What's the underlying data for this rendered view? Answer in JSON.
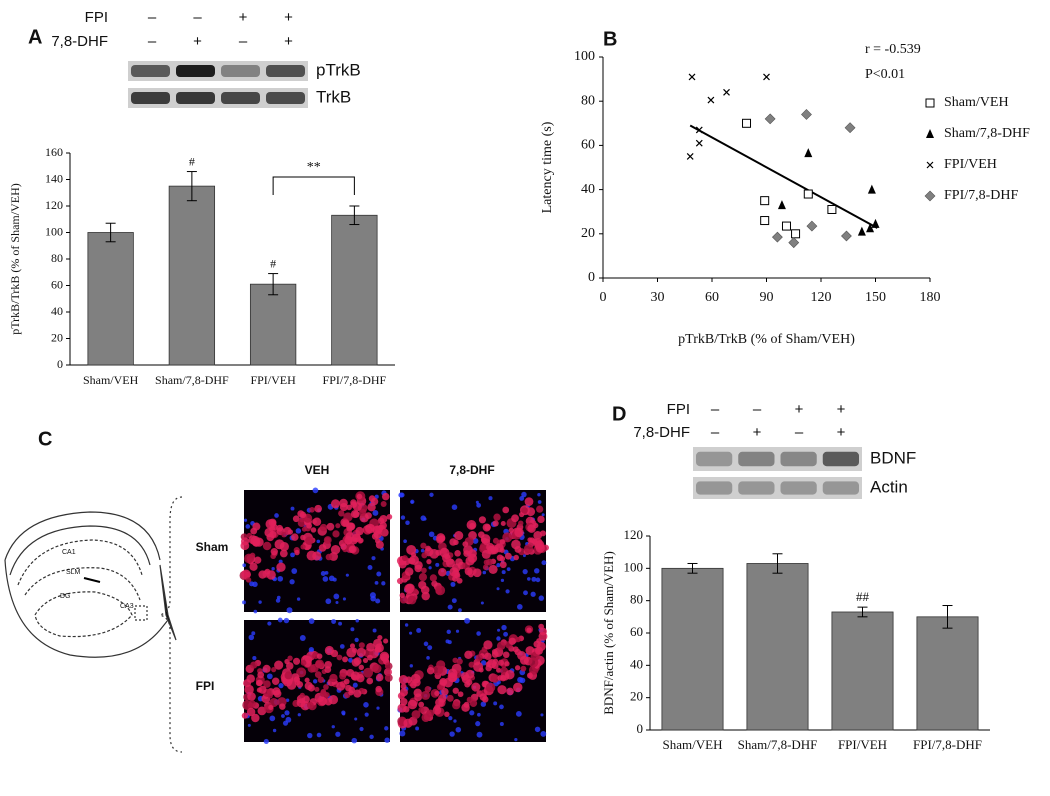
{
  "chart_data": [
    {
      "type": "bar",
      "panel_label": "A",
      "y_label": "pTrkB/TrkB (% of Sham/VEH)",
      "categories": [
        "Sham/VEH",
        "Sham/7,8-DHF",
        "FPI/VEH",
        "FPI/7,8-DHF"
      ],
      "values": [
        100,
        135,
        61,
        113
      ],
      "errors": [
        7,
        11,
        8,
        7
      ],
      "color": "#808080",
      "ylim": [
        0,
        160
      ],
      "yticks": [
        0,
        20,
        40,
        60,
        80,
        100,
        120,
        140,
        160
      ],
      "annotations": [
        "#",
        "#",
        "**"
      ],
      "blot": {
        "rows": [
          {
            "label": "FPI",
            "signs": [
              "–",
              "–",
              "+",
              "+"
            ]
          },
          {
            "label": "7,8-DHF",
            "signs": [
              "–",
              "+",
              "–",
              "+"
            ]
          }
        ],
        "bands": [
          "pTrkB",
          "TrkB"
        ]
      }
    },
    {
      "type": "scatter",
      "panel_label": "B",
      "x_label": "pTrkB/TrkB (% of Sham/VEH)",
      "y_label": "Latency time (s)",
      "xlim": [
        0,
        180
      ],
      "xticks": [
        0,
        30,
        60,
        90,
        120,
        150,
        180
      ],
      "ylim": [
        0,
        100
      ],
      "yticks": [
        0,
        20,
        40,
        60,
        80,
        100
      ],
      "annotations": [
        "r = -0.539",
        "P<0.01"
      ],
      "legend": "right",
      "series": [
        {
          "name": "Sham/VEH",
          "marker": "open-square",
          "color": "#000000",
          "x": [
            79,
            89,
            89,
            101,
            106,
            113,
            126
          ],
          "values": [
            70,
            35,
            26,
            23.5,
            20,
            38,
            31
          ]
        },
        {
          "name": "Sham/7,8-DHF",
          "marker": "triangle",
          "color": "#000000",
          "x": [
            98.5,
            113,
            148,
            142.5,
            147,
            150
          ],
          "values": [
            33,
            56.5,
            40,
            21,
            22.5,
            24.5
          ]
        },
        {
          "name": "FPI/VEH",
          "marker": "x",
          "color": "#000000",
          "x": [
            49,
            59.4,
            68,
            90,
            53,
            53,
            48
          ],
          "values": [
            91,
            80.5,
            84,
            91,
            67,
            61,
            55
          ]
        },
        {
          "name": "FPI/7,8-DHF",
          "marker": "diamond",
          "color": "#808080",
          "x": [
            92,
            112,
            136,
            96,
            105,
            115,
            134
          ],
          "values": [
            72,
            74,
            68,
            18.5,
            16,
            23.5,
            19
          ]
        }
      ],
      "trendline": {
        "x": [
          48,
          151
        ],
        "y": [
          69,
          22.6
        ],
        "color": "#000000"
      }
    },
    {
      "type": "bar",
      "panel_label": "D",
      "y_label": "BDNF/actin (% of Sham/VEH)",
      "categories": [
        "Sham/VEH",
        "Sham/7,8-DHF",
        "FPI/VEH",
        "FPI/7,8-DHF"
      ],
      "values": [
        100,
        103,
        73,
        70
      ],
      "errors": [
        3,
        6,
        3,
        7
      ],
      "color": "#808080",
      "ylim": [
        0,
        120
      ],
      "yticks": [
        0,
        20,
        40,
        60,
        80,
        100,
        120
      ],
      "annotations": [
        "##"
      ],
      "blot": {
        "rows": [
          {
            "label": "FPI",
            "signs": [
              "–",
              "–",
              "+",
              "+"
            ]
          },
          {
            "label": "7,8-DHF",
            "signs": [
              "–",
              "+",
              "–",
              "+"
            ]
          }
        ],
        "bands": [
          "BDNF",
          "Actin"
        ]
      }
    }
  ],
  "panel_c": {
    "panel_label": "C",
    "columns": [
      "VEH",
      "7,8-DHF"
    ],
    "rows": [
      "Sham",
      "FPI"
    ],
    "diagram_labels": [
      "CA1",
      "SLM",
      "DG",
      "CA3"
    ]
  }
}
